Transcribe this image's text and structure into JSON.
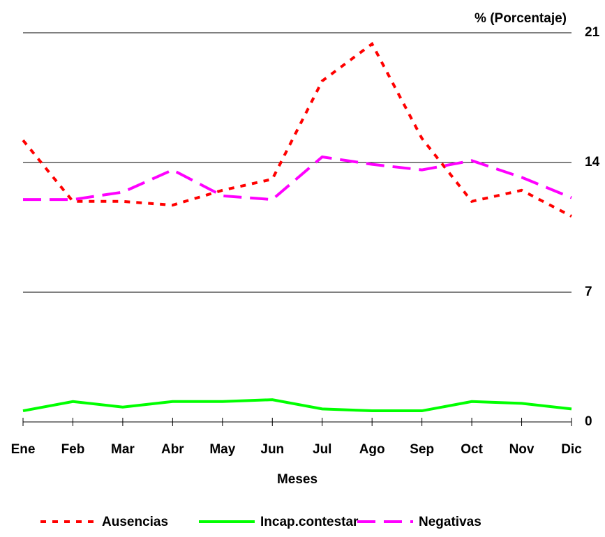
{
  "chart_data": {
    "type": "line",
    "y_title": "% (Porcentaje)",
    "x_title": "Meses",
    "categories": [
      "Ene",
      "Feb",
      "Mar",
      "Abr",
      "May",
      "Jun",
      "Jul",
      "Ago",
      "Sep",
      "Oct",
      "Nov",
      "Dic"
    ],
    "series": [
      {
        "name": "Ausencias",
        "color": "#ff0000",
        "style": "dotted",
        "values": [
          15.2,
          11.9,
          11.9,
          11.7,
          12.5,
          13.1,
          18.4,
          20.4,
          15.3,
          11.9,
          12.5,
          11.1
        ]
      },
      {
        "name": "Incap.contestar",
        "color": "#00ff00",
        "style": "solid",
        "values": [
          0.6,
          1.1,
          0.8,
          1.1,
          1.1,
          1.2,
          0.7,
          0.6,
          0.6,
          1.1,
          1.0,
          0.7
        ]
      },
      {
        "name": "Negativas",
        "color": "#ff00ff",
        "style": "dashed",
        "values": [
          12.0,
          12.0,
          12.4,
          13.6,
          12.2,
          12.0,
          14.3,
          13.9,
          13.6,
          14.1,
          13.2,
          12.1
        ]
      }
    ],
    "ylim": [
      0,
      21
    ],
    "yticks": [
      0,
      7,
      14,
      21
    ],
    "grid": true
  }
}
